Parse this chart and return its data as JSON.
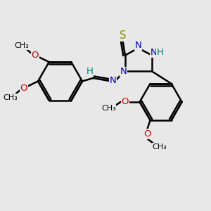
{
  "bg_color": "#e8e8e8",
  "bond_color": "#000000",
  "bond_width": 1.8,
  "atom_colors": {
    "N": "#0000cc",
    "S": "#888800",
    "O": "#cc0000",
    "H_teal": "#008080",
    "C": "#000000"
  },
  "font_size": 9.5,
  "fig_w": 3.0,
  "fig_h": 3.0,
  "dpi": 100,
  "xlim": [
    0,
    10
  ],
  "ylim": [
    0,
    10
  ]
}
